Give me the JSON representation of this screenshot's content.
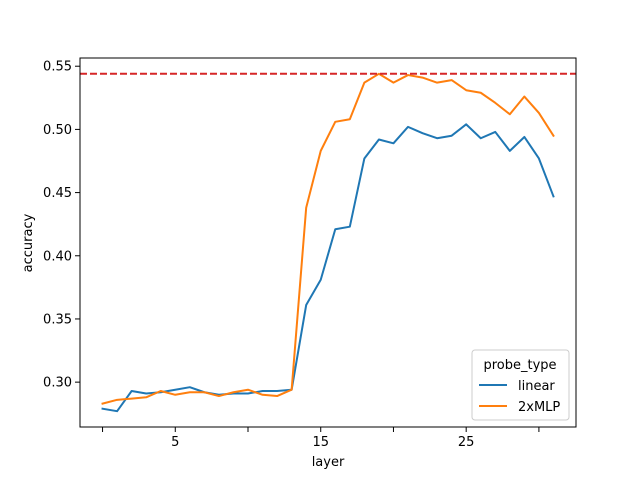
{
  "chart_data": {
    "type": "line",
    "xlabel": "layer",
    "ylabel": "accuracy",
    "xlim": [
      -1.55,
      32.55
    ],
    "ylim": [
      0.2645,
      0.5565
    ],
    "x_ticks": [
      {
        "value": 0,
        "label": ""
      },
      {
        "value": 5,
        "label": "5"
      },
      {
        "value": 10,
        "label": ""
      },
      {
        "value": 15,
        "label": "15"
      },
      {
        "value": 20,
        "label": ""
      },
      {
        "value": 25,
        "label": "25"
      },
      {
        "value": 30,
        "label": ""
      }
    ],
    "y_ticks": [
      {
        "value": 0.3,
        "label": "0.30"
      },
      {
        "value": 0.35,
        "label": "0.35"
      },
      {
        "value": 0.4,
        "label": "0.40"
      },
      {
        "value": 0.45,
        "label": "0.45"
      },
      {
        "value": 0.5,
        "label": "0.50"
      },
      {
        "value": 0.55,
        "label": "0.55"
      }
    ],
    "grid": false,
    "legend": {
      "title": "probe_type",
      "placement": "lower-right"
    },
    "x": [
      0,
      1,
      2,
      3,
      4,
      5,
      6,
      7,
      8,
      9,
      10,
      11,
      12,
      13,
      14,
      15,
      16,
      17,
      18,
      19,
      20,
      21,
      22,
      23,
      24,
      25,
      26,
      27,
      28,
      29,
      30,
      31
    ],
    "series": [
      {
        "name": "linear",
        "color": "#1f77b4",
        "values": [
          0.279,
          0.277,
          0.293,
          0.291,
          0.292,
          0.294,
          0.296,
          0.292,
          0.29,
          0.291,
          0.291,
          0.293,
          0.293,
          0.294,
          0.361,
          0.381,
          0.421,
          0.423,
          0.477,
          0.492,
          0.489,
          0.502,
          0.497,
          0.493,
          0.495,
          0.504,
          0.493,
          0.498,
          0.483,
          0.494,
          0.477,
          0.447
        ]
      },
      {
        "name": "2xMLP",
        "color": "#ff7f0e",
        "values": [
          0.283,
          0.286,
          0.287,
          0.288,
          0.293,
          0.29,
          0.292,
          0.292,
          0.289,
          0.292,
          0.294,
          0.29,
          0.289,
          0.294,
          0.438,
          0.483,
          0.506,
          0.508,
          0.537,
          0.544,
          0.537,
          0.543,
          0.541,
          0.537,
          0.539,
          0.531,
          0.529,
          0.521,
          0.512,
          0.526,
          0.513,
          0.495
        ]
      }
    ],
    "reference_line": {
      "y": 0.544,
      "color": "#d62728",
      "style": "dashed"
    }
  }
}
